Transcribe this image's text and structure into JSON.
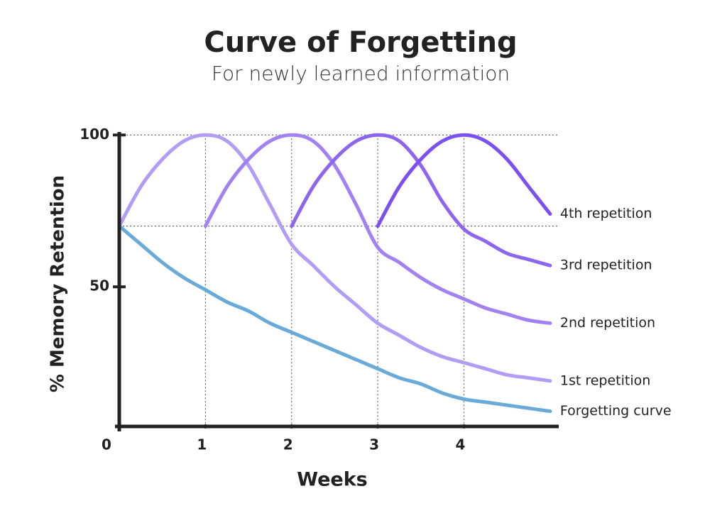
{
  "chart_data": {
    "type": "line",
    "title": "Curve of Forgetting",
    "subtitle": "For newly learned information",
    "x_label": "Weeks",
    "y_label": "% Memory Retention",
    "x": [
      0,
      0.25,
      0.5,
      0.75,
      1,
      1.25,
      1.5,
      1.75,
      2,
      2.25,
      2.5,
      2.75,
      3,
      3.25,
      3.5,
      3.75,
      4,
      4.25,
      4.5,
      4.75,
      5
    ],
    "series": [
      {
        "name": "Forgetting curve",
        "color": "#6aaad8",
        "values": [
          70,
          64,
          58,
          53,
          49,
          45,
          42,
          38,
          35,
          32,
          29,
          26,
          23,
          20,
          18,
          15,
          13,
          12,
          11,
          10,
          9
        ]
      },
      {
        "name": "1st repetition",
        "color": "#b29cf6",
        "values": [
          70,
          83,
          92,
          98,
          100,
          98,
          90,
          77,
          64,
          57,
          50,
          44,
          38,
          34,
          30,
          27,
          25,
          23,
          21,
          20,
          19
        ]
      },
      {
        "name": "2nd repetition",
        "color": "#a282f3",
        "values": [
          null,
          null,
          null,
          null,
          70,
          83,
          92,
          98,
          100,
          98,
          90,
          77,
          63,
          58,
          53,
          49,
          46,
          43,
          41,
          39,
          38
        ]
      },
      {
        "name": "3rd repetition",
        "color": "#8d66ef",
        "values": [
          null,
          null,
          null,
          null,
          null,
          null,
          null,
          null,
          70,
          83,
          92,
          98,
          100,
          98,
          90,
          78,
          69,
          65,
          61,
          59,
          57
        ]
      },
      {
        "name": "4th repetition",
        "color": "#7a50ee",
        "values": [
          null,
          null,
          null,
          null,
          null,
          null,
          null,
          null,
          null,
          null,
          null,
          null,
          70,
          83,
          92,
          98,
          100,
          98,
          92,
          83,
          74
        ]
      }
    ],
    "xlim": [
      0,
      5.1
    ],
    "ylim": [
      4,
      101
    ],
    "xticks": [
      0,
      1,
      2,
      3,
      4
    ],
    "yticks": [
      50,
      100
    ],
    "hlines": [
      100,
      70
    ],
    "vlines": [
      1,
      2,
      3,
      4
    ]
  }
}
